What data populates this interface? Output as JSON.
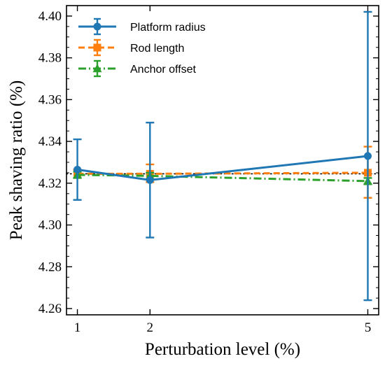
{
  "chart_data": {
    "type": "line",
    "xlabel": "Perturbation level (%)",
    "ylabel": "Peak shaving ratio (%)",
    "x": [
      1,
      2,
      5
    ],
    "x_ticks": [
      "1",
      "2",
      "5"
    ],
    "xlim": [
      0.85,
      5.15
    ],
    "ylim": [
      4.257,
      4.405
    ],
    "y_ticks": [
      "4.26",
      "4.28",
      "4.30",
      "4.32",
      "4.34",
      "4.36",
      "4.38",
      "4.40"
    ],
    "y_tick_values": [
      4.26,
      4.28,
      4.3,
      4.32,
      4.34,
      4.36,
      4.38,
      4.4
    ],
    "reference_line": 4.3245,
    "grid": false,
    "legend_position": "top-left",
    "series": [
      {
        "name": "Platform radius",
        "color": "#1f77b4",
        "marker": "circle",
        "linestyle": "solid",
        "values": [
          4.3265,
          4.3215,
          4.333
        ],
        "err_low": [
          4.312,
          4.294,
          4.264
        ],
        "err_high": [
          4.341,
          4.349,
          4.402
        ]
      },
      {
        "name": "Rod length",
        "color": "#ff7f0e",
        "marker": "square",
        "linestyle": "dashed",
        "values": [
          4.3245,
          4.3245,
          4.325
        ],
        "err_low": [
          4.3225,
          4.3205,
          4.313
        ],
        "err_high": [
          4.3265,
          4.329,
          4.3375
        ]
      },
      {
        "name": "Anchor offset",
        "color": "#2ca02c",
        "marker": "triangle",
        "linestyle": "dashdot",
        "values": [
          4.324,
          4.3235,
          4.321
        ],
        "err_low": [
          4.3225,
          4.322,
          4.3195
        ],
        "err_high": [
          4.3255,
          4.325,
          4.3225
        ]
      }
    ]
  }
}
